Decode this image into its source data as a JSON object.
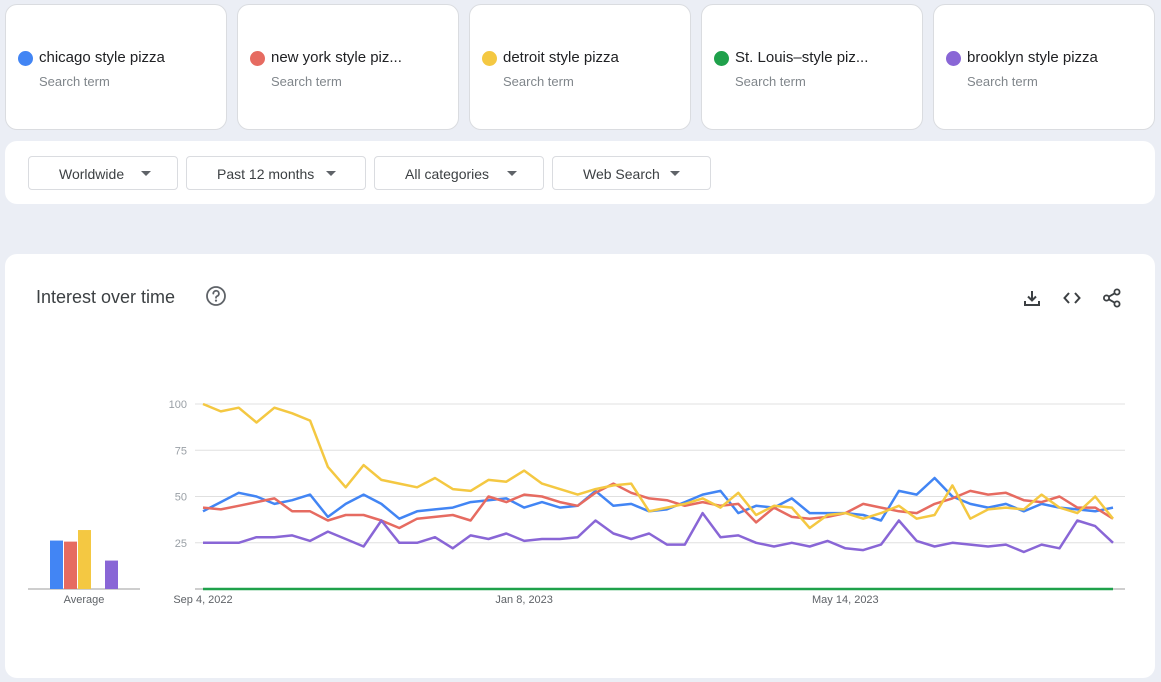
{
  "terms": [
    {
      "name": "chicago style pizza",
      "subtitle": "Search term",
      "color": "#4285f4"
    },
    {
      "name": "new york style piz...",
      "subtitle": "Search term",
      "color": "#e66b61"
    },
    {
      "name": "detroit style pizza",
      "subtitle": "Search term",
      "color": "#f4c842"
    },
    {
      "name": "St. Louis–style piz...",
      "subtitle": "Search term",
      "color": "#1fa14b"
    },
    {
      "name": "brooklyn style pizza",
      "subtitle": "Search term",
      "color": "#8966d6"
    }
  ],
  "filters": {
    "region": "Worldwide",
    "time": "Past 12 months",
    "category": "All categories",
    "search_type": "Web Search"
  },
  "panel": {
    "title": "Interest over time",
    "icons": [
      "help-icon",
      "download-icon",
      "embed-icon",
      "share-icon"
    ]
  },
  "chart_data": {
    "type": "line",
    "title": "Interest over time",
    "y_ticks": [
      "100",
      "75",
      "50",
      "25"
    ],
    "ylim": [
      0,
      100
    ],
    "grid": true,
    "x_tick_labels": [
      "Sep 4, 2022",
      "Jan 8, 2023",
      "May 14, 2023"
    ],
    "x_tick_indices": [
      0,
      18,
      36
    ],
    "points": 52,
    "series": [
      {
        "name": "chicago style pizza",
        "color": "#4285f4",
        "values": [
          42,
          47,
          52,
          50,
          46,
          48,
          51,
          39,
          46,
          51,
          46,
          38,
          42,
          43,
          44,
          47,
          48,
          49,
          44,
          47,
          44,
          45,
          53,
          45,
          46,
          42,
          43,
          47,
          51,
          53,
          41,
          45,
          44,
          49,
          41,
          41,
          41,
          40,
          37,
          53,
          51,
          60,
          50,
          46,
          44,
          46,
          42,
          46,
          44,
          43,
          42,
          44
        ]
      },
      {
        "name": "new york style piz...",
        "color": "#e66b61",
        "values": [
          44,
          43,
          45,
          47,
          49,
          42,
          42,
          37,
          40,
          40,
          37,
          33,
          38,
          39,
          40,
          37,
          50,
          47,
          51,
          50,
          47,
          45,
          52,
          57,
          52,
          49,
          48,
          45,
          47,
          45,
          46,
          36,
          44,
          39,
          38,
          39,
          41,
          46,
          44,
          42,
          41,
          46,
          49,
          53,
          51,
          52,
          48,
          47,
          50,
          44,
          44,
          38
        ]
      },
      {
        "name": "detroit style pizza",
        "color": "#f4c842",
        "values": [
          100,
          96,
          98,
          90,
          98,
          95,
          91,
          66,
          55,
          67,
          59,
          57,
          55,
          60,
          54,
          53,
          59,
          58,
          64,
          57,
          54,
          51,
          54,
          56,
          57,
          42,
          44,
          46,
          49,
          44,
          52,
          40,
          45,
          44,
          33,
          40,
          41,
          38,
          41,
          45,
          38,
          40,
          56,
          38,
          43,
          44,
          43,
          51,
          44,
          41,
          50,
          38
        ]
      },
      {
        "name": "St. Louis–style piz...",
        "color": "#1fa14b",
        "values": [
          0,
          0,
          0,
          0,
          0,
          0,
          0,
          0,
          0,
          0,
          0,
          0,
          0,
          0,
          0,
          0,
          0,
          0,
          0,
          0,
          0,
          0,
          0,
          0,
          0,
          0,
          0,
          0,
          0,
          0,
          0,
          0,
          0,
          0,
          0,
          0,
          0,
          0,
          0,
          0,
          0,
          0,
          0,
          0,
          0,
          0,
          0,
          0,
          0,
          0,
          0,
          0
        ]
      },
      {
        "name": "brooklyn style pizza",
        "color": "#8966d6",
        "values": [
          25,
          25,
          25,
          28,
          28,
          29,
          26,
          31,
          27,
          23,
          37,
          25,
          25,
          28,
          22,
          29,
          27,
          30,
          26,
          27,
          27,
          28,
          37,
          30,
          27,
          30,
          24,
          24,
          41,
          28,
          29,
          25,
          23,
          25,
          23,
          26,
          22,
          21,
          24,
          37,
          26,
          23,
          25,
          24,
          23,
          24,
          20,
          24,
          22,
          37,
          34,
          25
        ]
      }
    ],
    "averages": [
      {
        "name": "chicago style pizza",
        "value": 46,
        "color": "#4285f4"
      },
      {
        "name": "new york style piz...",
        "value": 45,
        "color": "#e66b61"
      },
      {
        "name": "detroit style pizza",
        "value": 56,
        "color": "#f4c842"
      },
      {
        "name": "St. Louis–style piz...",
        "value": 0,
        "color": "#1fa14b"
      },
      {
        "name": "brooklyn style pizza",
        "value": 27,
        "color": "#8966d6"
      }
    ],
    "average_label": "Average"
  }
}
